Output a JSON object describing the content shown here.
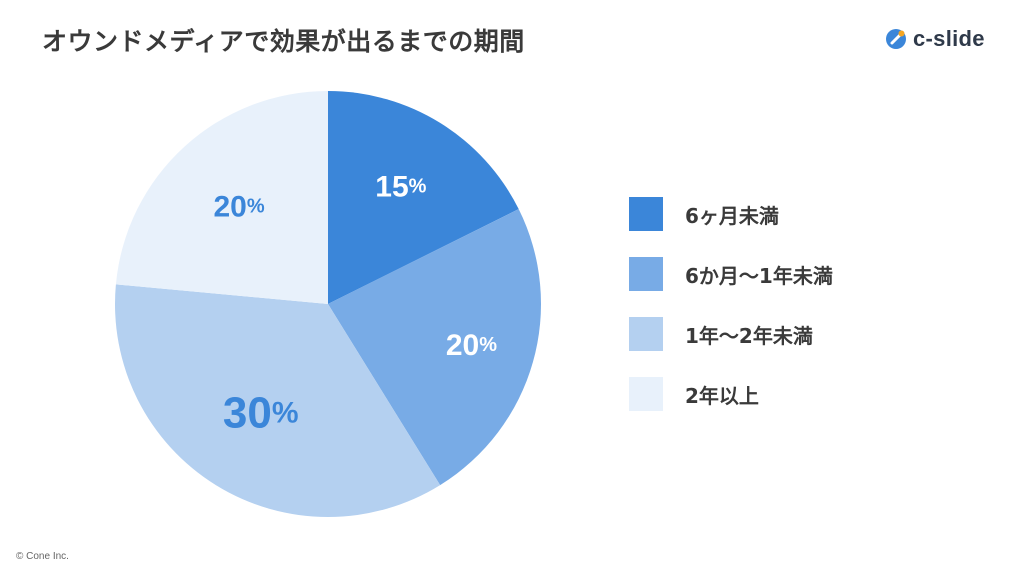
{
  "header": {
    "title": "オウンドメディアで効果が出るまでの期間",
    "brand_name": "c-slide"
  },
  "footer": {
    "copyright": "© Cone Inc."
  },
  "colors": {
    "dark_blue": "#3b86d9",
    "mid_blue": "#78abe6",
    "light_blue": "#b4d0f0",
    "pale_blue": "#e8f1fb",
    "label_blue": "#3b86d9",
    "label_white": "#ffffff",
    "brand_orange": "#f5a623"
  },
  "chart_data": {
    "type": "pie",
    "categories": [
      "6ヶ月未満",
      "6か月〜1年未満",
      "1年〜2年未満",
      "2年以上"
    ],
    "values": [
      15,
      20,
      30,
      20
    ],
    "value_labels": [
      {
        "num": "15",
        "unit": "%"
      },
      {
        "num": "20",
        "unit": "%"
      },
      {
        "num": "30",
        "unit": "%"
      },
      {
        "num": "20",
        "unit": "%"
      }
    ],
    "start": "12 o'clock",
    "direction": "clockwise",
    "legend_placement": "right"
  }
}
